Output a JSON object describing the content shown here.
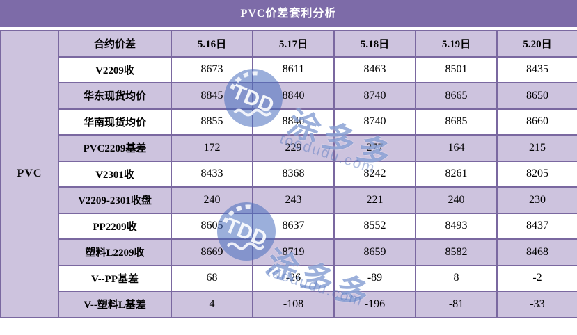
{
  "title": "PVC价差套利分析",
  "chart_data": {
    "type": "table",
    "title": "PVC价差套利分析",
    "row_group": "PVC",
    "columns": [
      "合约价差",
      "5.16日",
      "5.17日",
      "5.18日",
      "5.19日",
      "5.20日"
    ],
    "rows": [
      {
        "label": "V2209收",
        "values": [
          "8673",
          "8611",
          "8463",
          "8501",
          "8435"
        ]
      },
      {
        "label": "华东现货均价",
        "values": [
          "8845",
          "8840",
          "8740",
          "8665",
          "8650"
        ]
      },
      {
        "label": "华南现货均价",
        "values": [
          "8855",
          "8840",
          "8740",
          "8685",
          "8660"
        ]
      },
      {
        "label": "PVC2209基差",
        "values": [
          "172",
          "229",
          "277",
          "164",
          "215"
        ]
      },
      {
        "label": "V2301收",
        "values": [
          "8433",
          "8368",
          "8242",
          "8261",
          "8205"
        ]
      },
      {
        "label": "V2209-2301收盘",
        "values": [
          "240",
          "243",
          "221",
          "240",
          "230"
        ]
      },
      {
        "label": "PP2209收",
        "values": [
          "8605",
          "8637",
          "8552",
          "8493",
          "8437"
        ]
      },
      {
        "label": "塑料L2209收",
        "values": [
          "8669",
          "8719",
          "8659",
          "8582",
          "8468"
        ]
      },
      {
        "label": "V--PP基差",
        "values": [
          "68",
          "-26",
          "-89",
          "8",
          "-2"
        ]
      },
      {
        "label": "V--塑料L基差",
        "values": [
          "4",
          "-108",
          "-196",
          "-81",
          "-33"
        ]
      }
    ]
  },
  "watermark": {
    "logo_text": "TDD",
    "brand_cn": "涂多多",
    "brand_en": "toodudu.com"
  },
  "colors": {
    "title_bg": "#7D6BA8",
    "row_alt_bg": "#CDC3DE",
    "row_white_bg": "#FFFFFF",
    "border": "#7A68A0",
    "title_text": "#FFFFFF",
    "cell_text": "#000000",
    "watermark_blue": "#4A6FBE"
  }
}
